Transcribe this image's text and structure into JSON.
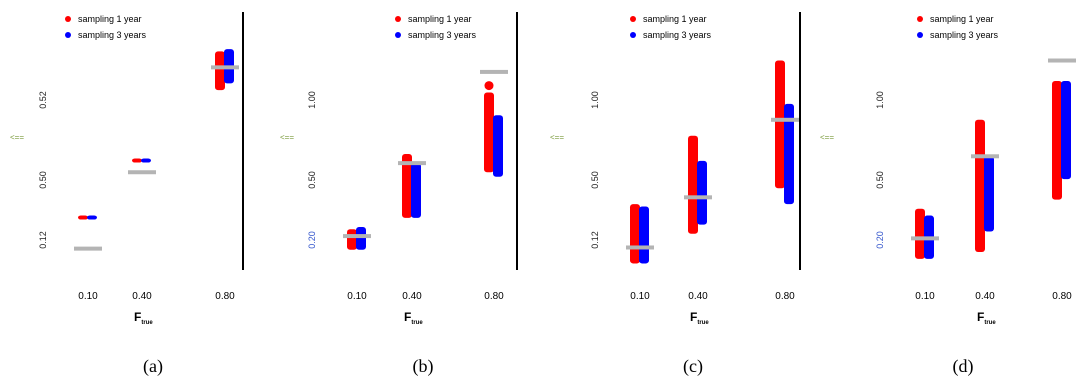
{
  "chart_data": [
    {
      "type": "scatter",
      "caption": "(a)",
      "left_mark": "<==",
      "categories": [
        "0.10",
        "0.40",
        "0.80"
      ],
      "y_ticks": [
        "0.12",
        "0.50",
        "0.52"
      ],
      "xlabel": "F",
      "xlabel_sub": "true",
      "legend": [
        "sampling 1 year",
        "sampling 3 years"
      ],
      "series": [
        {
          "name": "sampling 1 year",
          "color": "#ff0000",
          "ranges": [
            [
              0.85,
              0.23
            ],
            [
              0.8,
              0.48
            ],
            [
              0.78,
              0.95
            ]
          ]
        },
        {
          "name": "sampling 3 years",
          "color": "#0000ff",
          "ranges": [
            [
              0.86,
              0.23
            ],
            [
              0.82,
              0.48
            ],
            [
              0.81,
              0.96
            ]
          ]
        }
      ],
      "truth": [
        0.085,
        0.42,
        0.88
      ],
      "ylim": [
        0,
        1
      ]
    },
    {
      "type": "scatter",
      "caption": "(b)",
      "left_mark": "<==",
      "categories": [
        "0.10",
        "0.40",
        "0.80"
      ],
      "y_ticks": [
        "0.20",
        "0.50",
        "1.00"
      ],
      "xlabel": "F",
      "xlabel_sub": "true",
      "legend": [
        "sampling 1 year",
        "sampling 3 years"
      ],
      "series": [
        {
          "name": "sampling 1 year",
          "color": "#ff0000",
          "ranges": [
            [
              0.08,
              0.17
            ],
            [
              0.22,
              0.5
            ],
            [
              0.42,
              0.77
            ]
          ]
        },
        {
          "name": "sampling 3 years",
          "color": "#0000ff",
          "ranges": [
            [
              0.08,
              0.18
            ],
            [
              0.22,
              0.46
            ],
            [
              0.4,
              0.67
            ]
          ]
        }
      ],
      "outliers": [
        [
          2,
          0.8
        ]
      ],
      "truth": [
        0.14,
        0.46,
        0.86
      ],
      "ylim": [
        0,
        1
      ]
    },
    {
      "type": "scatter",
      "caption": "(c)",
      "left_mark": "<==",
      "categories": [
        "0.10",
        "0.40",
        "0.80"
      ],
      "y_ticks": [
        "0.12",
        "0.50",
        "1.00"
      ],
      "xlabel": "F",
      "xlabel_sub": "true",
      "legend": [
        "sampling 1 year",
        "sampling 3 years"
      ],
      "series": [
        {
          "name": "sampling 1 year",
          "color": "#ff0000",
          "ranges": [
            [
              0.02,
              0.28
            ],
            [
              0.15,
              0.58
            ],
            [
              0.35,
              0.91
            ]
          ]
        },
        {
          "name": "sampling 3 years",
          "color": "#0000ff",
          "ranges": [
            [
              0.02,
              0.27
            ],
            [
              0.19,
              0.47
            ],
            [
              0.28,
              0.72
            ]
          ]
        }
      ],
      "truth": [
        0.09,
        0.31,
        0.65
      ],
      "ylim": [
        0,
        1
      ]
    },
    {
      "type": "scatter",
      "caption": "(d)",
      "left_mark": "<==",
      "categories": [
        "0.10",
        "0.40",
        "0.80"
      ],
      "y_ticks": [
        "0.20",
        "0.50",
        "1.00"
      ],
      "xlabel": "F",
      "xlabel_sub": "true",
      "legend": [
        "sampling 1 year",
        "sampling 3 years"
      ],
      "series": [
        {
          "name": "sampling 1 year",
          "color": "#ff0000",
          "ranges": [
            [
              0.04,
              0.26
            ],
            [
              0.07,
              0.65
            ],
            [
              0.3,
              0.82
            ]
          ]
        },
        {
          "name": "sampling 3 years",
          "color": "#0000ff",
          "ranges": [
            [
              0.04,
              0.23
            ],
            [
              0.16,
              0.49
            ],
            [
              0.39,
              0.82
            ]
          ]
        }
      ],
      "truth": [
        0.13,
        0.49,
        0.91
      ],
      "ylim": [
        0,
        1
      ]
    }
  ],
  "colors": {
    "one_year": "#ff0000",
    "three_years": "#0000ff",
    "truth": "#b4b4b4"
  }
}
